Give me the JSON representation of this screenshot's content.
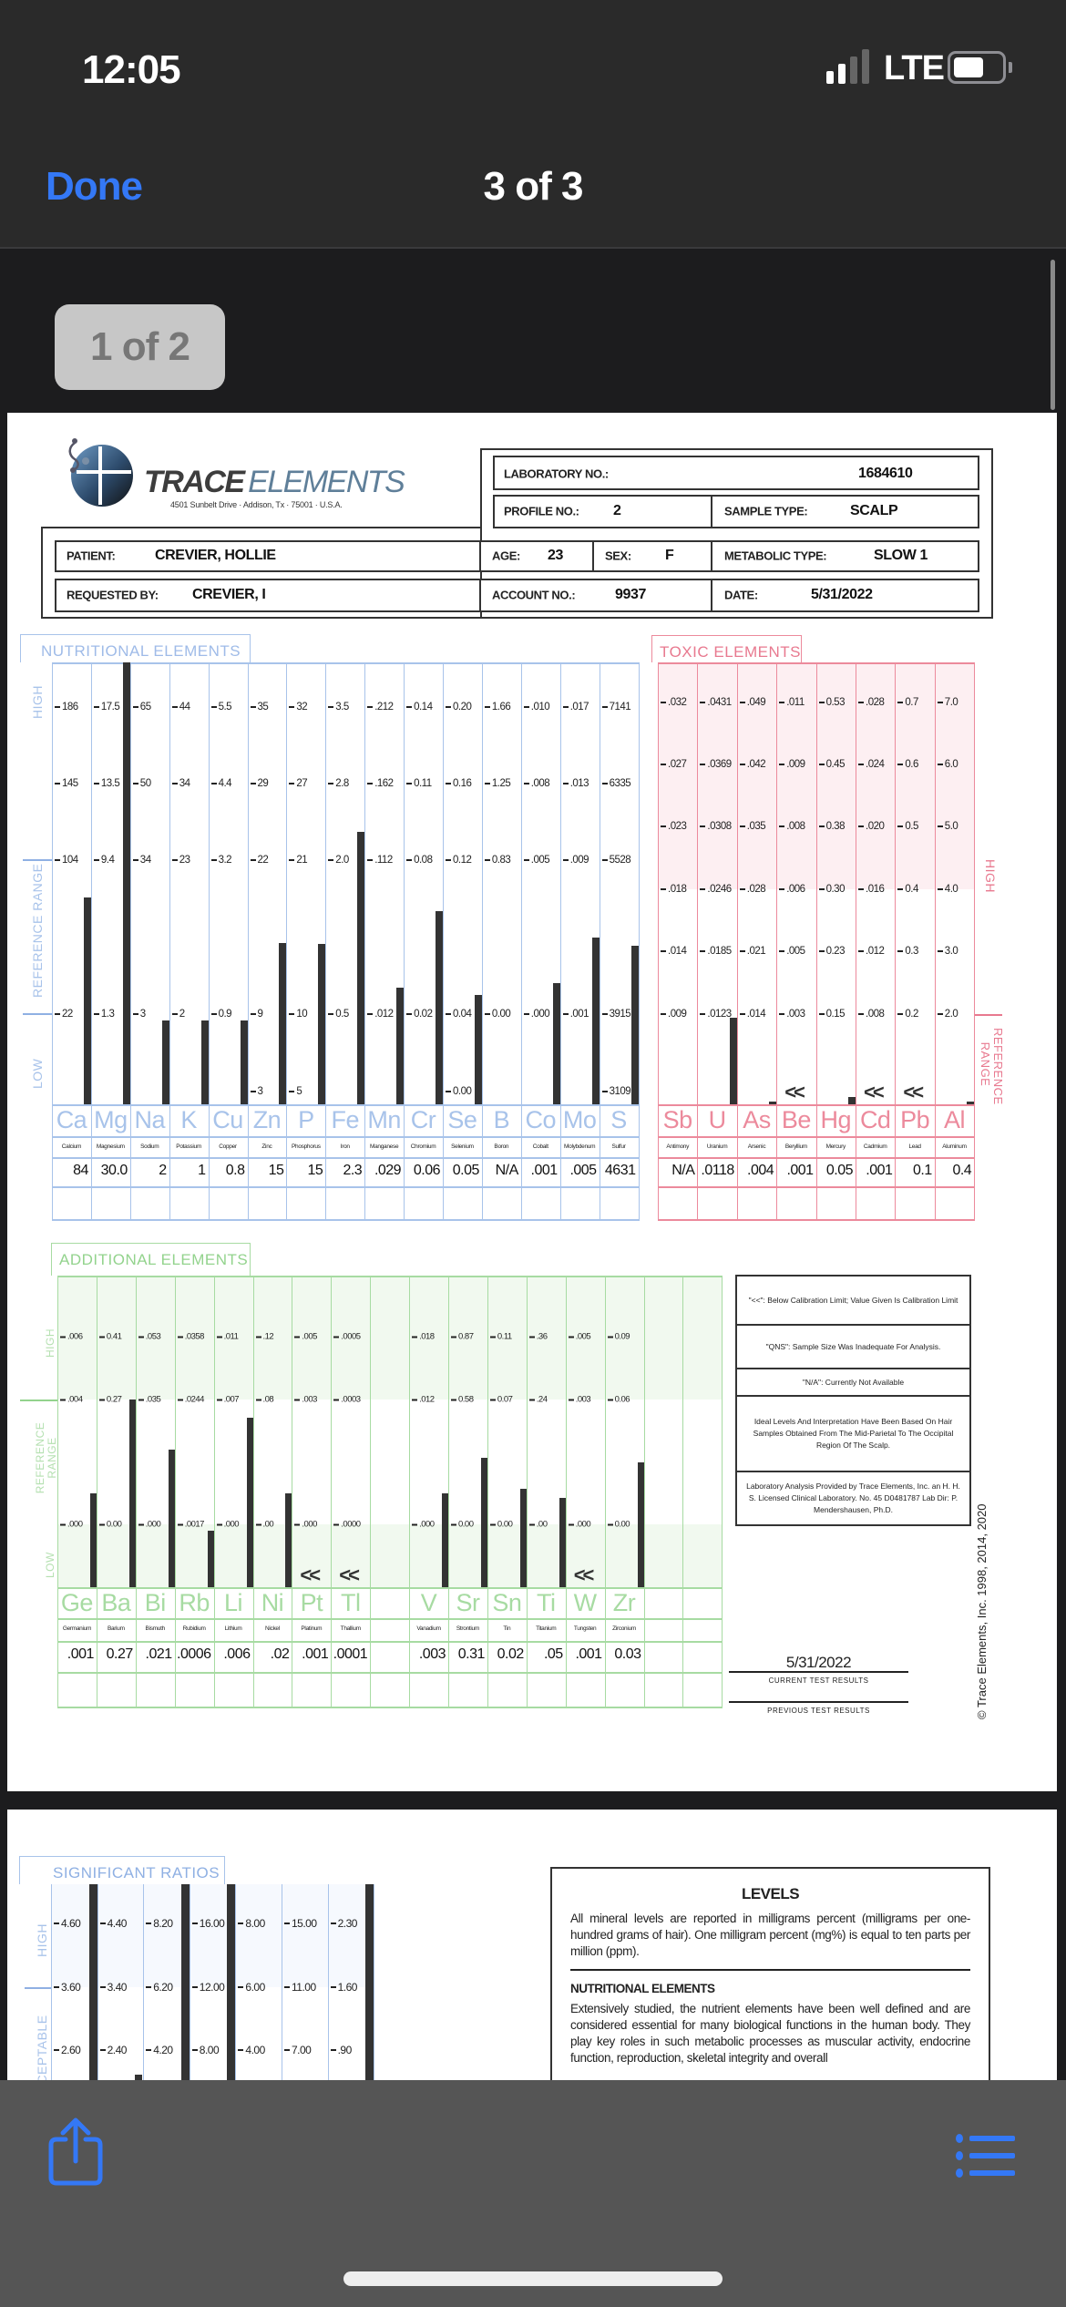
{
  "status_bar": {
    "time": "12:05",
    "network": "LTE",
    "signal_bars_active": 2,
    "signal_bars_total": 4
  },
  "nav": {
    "done_label": "Done",
    "title": "3 of 3"
  },
  "page_indicator": "1 of 2",
  "colors": {
    "accent": "#3478f6",
    "nutritional": "#8fb0e3",
    "toxic": "#e8798f",
    "additional": "#93d38d"
  },
  "report": {
    "brand_word1": "TRACE",
    "brand_word2": "ELEMENTS",
    "address": "4501 Sunbelt Drive · Addison, Tx · 75001 · U.S.A.",
    "header": {
      "lab_no_label": "LABORATORY NO.:",
      "lab_no": "1684610",
      "profile_no_label": "PROFILE NO.:",
      "profile_no": "2",
      "sample_type_label": "SAMPLE TYPE:",
      "sample_type": "SCALP",
      "patient_label": "PATIENT:",
      "patient": "CREVIER, HOLLIE",
      "age_label": "AGE:",
      "age": "23",
      "sex_label": "SEX:",
      "sex": "F",
      "metabolic_label": "METABOLIC TYPE:",
      "metabolic": "SLOW 1",
      "requested_label": "REQUESTED BY:",
      "requested": "CREVIER, I",
      "account_label": "ACCOUNT NO.:",
      "account": "9937",
      "date_label": "DATE:",
      "date": "5/31/2022"
    },
    "nutritional": {
      "title": "NUTRITIONAL ELEMENTS",
      "side_labels": {
        "high": "HIGH",
        "reference": "REFERENCE   RANGE",
        "low": "LOW"
      },
      "columns": [
        {
          "symbol": "Ca",
          "name": "Calcium",
          "value": "84",
          "ticks": [
            "186",
            "145",
            "104",
            "22"
          ],
          "low_tick": null
        },
        {
          "symbol": "Mg",
          "name": "Magnesium",
          "value": "30.0",
          "ticks": [
            "17.5",
            "13.5",
            "9.4",
            "1.3"
          ],
          "low_tick": null
        },
        {
          "symbol": "Na",
          "name": "Sodium",
          "value": "2",
          "ticks": [
            "65",
            "50",
            "34",
            "3"
          ],
          "low_tick": null
        },
        {
          "symbol": "K",
          "name": "Potassium",
          "value": "1",
          "ticks": [
            "44",
            "34",
            "23",
            "2"
          ],
          "low_tick": null
        },
        {
          "symbol": "Cu",
          "name": "Copper",
          "value": "0.8",
          "ticks": [
            "5.5",
            "4.4",
            "3.2",
            "0.9"
          ],
          "low_tick": null
        },
        {
          "symbol": "Zn",
          "name": "Zinc",
          "value": "15",
          "ticks": [
            "35",
            "29",
            "22",
            "9"
          ],
          "low_tick": "3"
        },
        {
          "symbol": "P",
          "name": "Phosphorus",
          "value": "15",
          "ticks": [
            "32",
            "27",
            "21",
            "10"
          ],
          "low_tick": "5"
        },
        {
          "symbol": "Fe",
          "name": "Iron",
          "value": "2.3",
          "ticks": [
            "3.5",
            "2.8",
            "2.0",
            "0.5"
          ],
          "low_tick": null
        },
        {
          "symbol": "Mn",
          "name": "Manganese",
          "value": ".029",
          "ticks": [
            ".212",
            ".162",
            ".112",
            ".012"
          ],
          "low_tick": null
        },
        {
          "symbol": "Cr",
          "name": "Chromium",
          "value": "0.06",
          "ticks": [
            "0.14",
            "0.11",
            "0.08",
            "0.02"
          ],
          "low_tick": null
        },
        {
          "symbol": "Se",
          "name": "Selenium",
          "value": "0.05",
          "ticks": [
            "0.20",
            "0.16",
            "0.12",
            "0.04"
          ],
          "low_tick": "0.00"
        },
        {
          "symbol": "B",
          "name": "Boron",
          "value": "N/A",
          "ticks": [
            "1.66",
            "1.25",
            "0.83",
            "0.00"
          ],
          "low_tick": null
        },
        {
          "symbol": "Co",
          "name": "Cobalt",
          "value": ".001",
          "ticks": [
            ".010",
            ".008",
            ".005",
            ".000"
          ],
          "low_tick": null
        },
        {
          "symbol": "Mo",
          "name": "Molybdenum",
          "value": ".005",
          "ticks": [
            ".017",
            ".013",
            ".009",
            ".001"
          ],
          "low_tick": null
        },
        {
          "symbol": "S",
          "name": "Sulfur",
          "value": "4631",
          "ticks": [
            "7141",
            "6335",
            "5528",
            "3915"
          ],
          "low_tick": "3109"
        }
      ]
    },
    "toxic": {
      "title": "TOXIC ELEMENTS",
      "side_labels": {
        "high": "HIGH",
        "reference": "REFERENCE RANGE"
      },
      "columns": [
        {
          "symbol": "Sb",
          "name": "Antimony",
          "value": "N/A",
          "marker": "none",
          "ticks": [
            ".032",
            ".027",
            ".023",
            ".018",
            ".014",
            ".009"
          ]
        },
        {
          "symbol": "U",
          "name": "Uranium",
          "value": ".0118",
          "marker": "bar",
          "ticks": [
            ".0431",
            ".0369",
            ".0308",
            ".0246",
            ".0185",
            ".0123"
          ]
        },
        {
          "symbol": "As",
          "name": "Arsenic",
          "value": ".004",
          "marker": "dash",
          "ticks": [
            ".049",
            ".042",
            ".035",
            ".028",
            ".021",
            ".014"
          ]
        },
        {
          "symbol": "Be",
          "name": "Beryllium",
          "value": ".001",
          "marker": "<<",
          "ticks": [
            ".011",
            ".009",
            ".008",
            ".006",
            ".005",
            ".003"
          ]
        },
        {
          "symbol": "Hg",
          "name": "Mercury",
          "value": "0.05",
          "marker": "square",
          "ticks": [
            "0.53",
            "0.45",
            "0.38",
            "0.30",
            "0.23",
            "0.15"
          ]
        },
        {
          "symbol": "Cd",
          "name": "Cadmium",
          "value": ".001",
          "marker": "<<",
          "ticks": [
            ".028",
            ".024",
            ".020",
            ".016",
            ".012",
            ".008"
          ]
        },
        {
          "symbol": "Pb",
          "name": "Lead",
          "value": "0.1",
          "marker": "<<",
          "ticks": [
            "0.7",
            "0.6",
            "0.5",
            "0.4",
            "0.3",
            "0.2"
          ]
        },
        {
          "symbol": "Al",
          "name": "Aluminum",
          "value": "0.4",
          "marker": "dash",
          "ticks": [
            "7.0",
            "6.0",
            "5.0",
            "4.0",
            "3.0",
            "2.0"
          ]
        }
      ]
    },
    "additional": {
      "title": "ADDITIONAL  ELEMENTS",
      "side_labels": {
        "high": "HIGH",
        "reference": "REFERENCE RANGE",
        "low": "LOW"
      },
      "columns": [
        {
          "symbol": "Ge",
          "name": "Germanium",
          "value": ".001",
          "marker": "bar",
          "ticks": [
            ".006",
            ".004",
            ".000"
          ]
        },
        {
          "symbol": "Ba",
          "name": "Barium",
          "value": "0.27",
          "marker": "bar",
          "ticks": [
            "0.41",
            "0.27",
            "0.00"
          ]
        },
        {
          "symbol": "Bi",
          "name": "Bismuth",
          "value": ".021",
          "marker": "bar",
          "ticks": [
            ".053",
            ".035",
            ".000"
          ]
        },
        {
          "symbol": "Rb",
          "name": "Rubidium",
          "value": ".0006",
          "marker": "bar",
          "ticks": [
            ".0358",
            ".0244",
            ".0017"
          ]
        },
        {
          "symbol": "Li",
          "name": "Lithium",
          "value": ".006",
          "marker": "bar",
          "ticks": [
            ".011",
            ".007",
            ".000"
          ]
        },
        {
          "symbol": "Ni",
          "name": "Nickel",
          "value": ".02",
          "marker": "bar",
          "ticks": [
            ".12",
            ".08",
            ".00"
          ]
        },
        {
          "symbol": "Pt",
          "name": "Platinum",
          "value": ".001",
          "marker": "<<",
          "ticks": [
            ".005",
            ".003",
            ".000"
          ]
        },
        {
          "symbol": "Tl",
          "name": "Thallium",
          "value": ".0001",
          "marker": "<<",
          "ticks": [
            ".0005",
            ".0003",
            ".0000"
          ]
        },
        {
          "symbol": "",
          "name": "",
          "value": "",
          "marker": "none",
          "ticks": []
        },
        {
          "symbol": "V",
          "name": "Vanadium",
          "value": ".003",
          "marker": "bar",
          "ticks": [
            ".018",
            ".012",
            ".000"
          ]
        },
        {
          "symbol": "Sr",
          "name": "Strontium",
          "value": "0.31",
          "marker": "bar",
          "ticks": [
            "0.87",
            "0.58",
            "0.00"
          ]
        },
        {
          "symbol": "Sn",
          "name": "Tin",
          "value": "0.02",
          "marker": "bar",
          "ticks": [
            "0.11",
            "0.07",
            "0.00"
          ]
        },
        {
          "symbol": "Ti",
          "name": "Titanium",
          "value": ".05",
          "marker": "bar",
          "ticks": [
            ".36",
            ".24",
            ".00"
          ]
        },
        {
          "symbol": "W",
          "name": "Tungsten",
          "value": ".001",
          "marker": "<<",
          "ticks": [
            ".005",
            ".003",
            ".000"
          ]
        },
        {
          "symbol": "Zr",
          "name": "Zirconium",
          "value": "0.03",
          "marker": "bar",
          "ticks": [
            "0.09",
            "0.06",
            "0.00"
          ]
        },
        {
          "symbol": "",
          "name": "",
          "value": "",
          "marker": "none",
          "ticks": []
        },
        {
          "symbol": "",
          "name": "",
          "value": "",
          "marker": "none",
          "ticks": []
        }
      ]
    },
    "legend": [
      "\"<<\": Below Calibration Limit; Value Given Is Calibration Limit",
      "\"QNS\": Sample Size Was Inadequate For Analysis.",
      "\"N/A\": Currently Not Available",
      "Ideal Levels And Interpretation Have Been Based On Hair Samples Obtained From The Mid-Parietal To The Occipital Region Of The Scalp.",
      "Laboratory Analysis Provided by Trace Elements, Inc. an H. H. S. Licensed Clinical Laboratory. No. 45 D0481787  Lab Dir: P. Mendershausen, Ph.D."
    ],
    "current_results_date": "5/31/2022",
    "current_results_label": "CURRENT TEST RESULTS",
    "previous_results_label": "PREVIOUS TEST RESULTS",
    "copyright": "© Trace Elements, Inc. 1998, 2014, 2020"
  },
  "page2": {
    "ratios": {
      "title": "SIGNIFICANT RATIOS",
      "side_labels": {
        "high": "HIGH",
        "acceptable": "ACCEPTABLE"
      },
      "columns": [
        {
          "ticks": [
            "4.60",
            "3.60",
            "2.60"
          ],
          "bar": "above-high"
        },
        {
          "ticks": [
            "4.40",
            "3.40",
            "2.40"
          ],
          "bar": "below-acceptable"
        },
        {
          "ticks": [
            "8.20",
            "6.20",
            "4.20"
          ],
          "bar": "above-high"
        },
        {
          "ticks": [
            "16.00",
            "12.00",
            "8.00"
          ],
          "bar": "above-high"
        },
        {
          "ticks": [
            "8.00",
            "6.00",
            "4.00"
          ],
          "bar": "none"
        },
        {
          "ticks": [
            "15.00",
            "11.00",
            "7.00"
          ],
          "bar": "none"
        },
        {
          "ticks": [
            "2.30",
            "1.60",
            ".90"
          ],
          "bar": "above-high"
        }
      ]
    },
    "levels": {
      "title": "LEVELS",
      "text": "All mineral levels are reported in milligrams percent (milligrams per one-hundred grams of hair). One milligram percent (mg%) is equal to ten parts per million (ppm).",
      "nutritional_heading": "NUTRITIONAL ELEMENTS",
      "nutritional_text": "Extensively studied, the nutrient elements have been well defined and are considered essential for many biological functions in the human body. They play key roles in such metabolic processes as muscular activity, endocrine function, reproduction, skeletal integrity and overall"
    }
  },
  "toolbar": {
    "share_icon": "share-icon",
    "list_icon": "list-icon"
  }
}
